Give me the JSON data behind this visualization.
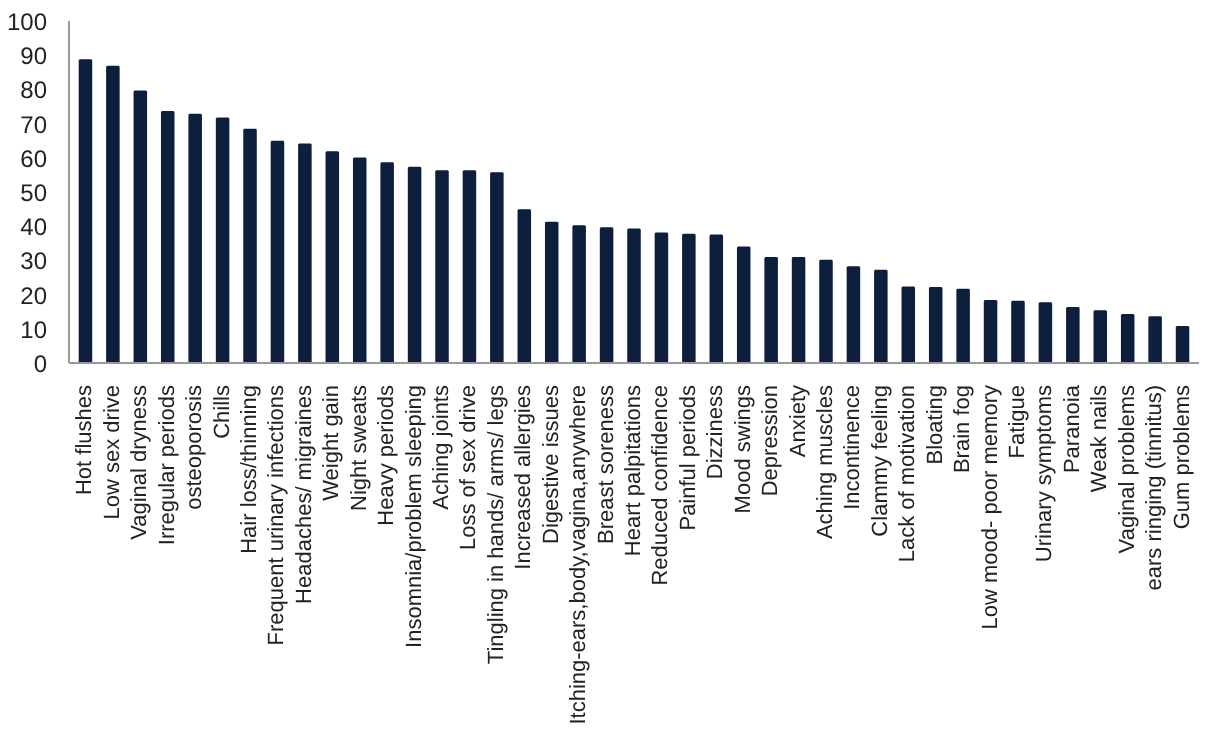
{
  "chart_data": {
    "type": "bar",
    "categories": [
      "Hot flushes",
      "Low sex drive",
      "Vaginal dryness",
      "Irregular periods",
      "osteoporosis",
      "Chills",
      "Hair loss/thinning",
      "Frequent urinary infections",
      "Headaches/ migraines",
      "Weight gain",
      "Night sweats",
      "Heavy periods",
      "Insomnia/problem sleeping",
      "Aching joints",
      "Loss of sex drive",
      "Tingling in hands/ arms/ legs",
      "Increased allergies",
      "Digestive issues",
      "Itching-ears,body,vagina,anywhere",
      "Breast soreness",
      "Heart palpitations",
      "Reduced confidence",
      "Painful periods",
      "Dizziness",
      "Mood swings",
      "Depression",
      "Anxiety",
      "Aching muscles",
      "Incontinence",
      "Clammy feeling",
      "Lack of motivation",
      "Bloating",
      "Brain fog",
      "Low mood- poor memory",
      "Fatigue",
      "Urinary symptoms",
      "Paranoia",
      "Weak nails",
      "Vaginal problems",
      "ears ringing (tinnitus)",
      "Gum problems"
    ],
    "values": [
      88.5,
      86.6,
      79.4,
      73.4,
      72.6,
      71.5,
      68.2,
      64.7,
      63.9,
      61.6,
      59.8,
      58.4,
      57.1,
      56.1,
      56.1,
      55.5,
      44.7,
      41.0,
      40.0,
      39.4,
      39.0,
      37.9,
      37.5,
      37.3,
      33.8,
      30.7,
      30.7,
      29.9,
      28.0,
      27.0,
      22.1,
      21.9,
      21.4,
      18.1,
      17.9,
      17.5,
      16.1,
      15.1,
      14.0,
      13.4,
      10.5
    ],
    "color": "#0d1f3c",
    "ylim": [
      0,
      100
    ],
    "yticks": [
      0,
      10,
      20,
      30,
      40,
      50,
      60,
      70,
      80,
      90,
      100
    ],
    "grid": false
  }
}
